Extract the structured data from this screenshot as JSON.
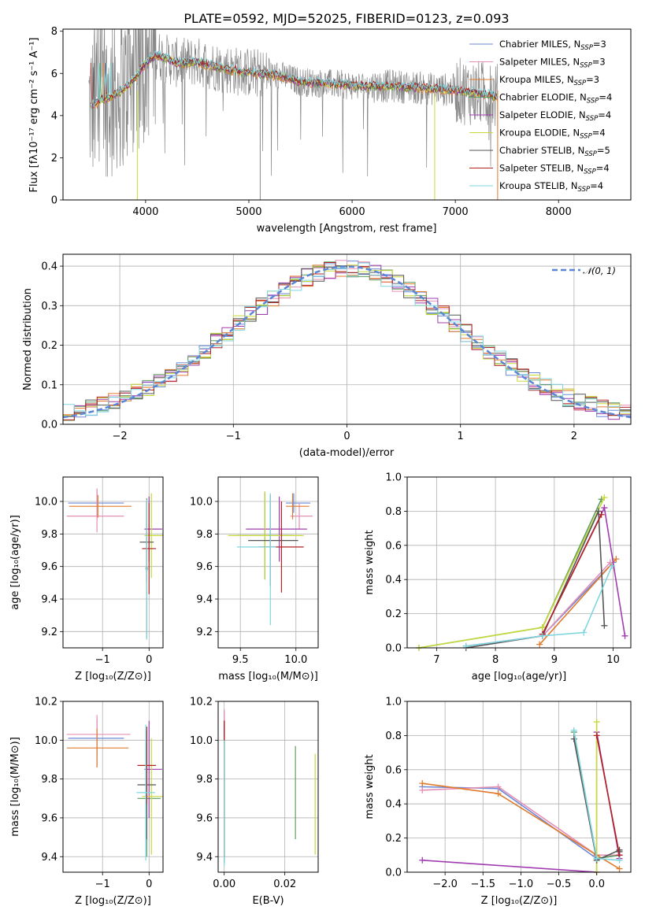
{
  "colors": {
    "chabrier_miles": "#6a8ad8",
    "salpeter_miles": "#e58fb5",
    "kroupa_miles": "#e07b2e",
    "chabrier_elodie": "#5f9e5f",
    "salpeter_elodie": "#a03cb0",
    "kroupa_elodie": "#c8d93a",
    "chabrier_stelib": "#555555",
    "salpeter_stelib": "#b22222",
    "kroupa_stelib": "#7fd6df",
    "normal": "#5b86d6"
  },
  "chart_data": [
    {
      "id": "spectrum",
      "type": "line",
      "title": "PLATE=0592, MJD=52025, FIBERID=0123, z=0.093",
      "xlabel": "wavelength [Angstrom, rest frame]",
      "ylabel": "Flux [fλ10⁻¹⁷ erg cm⁻² s⁻¹ A⁻¹]",
      "xlim": [
        3200,
        8700
      ],
      "ylim": [
        0,
        8.1
      ],
      "xticks": [
        4000,
        5000,
        6000,
        7000,
        8000
      ],
      "yticks": [
        0,
        2,
        4,
        6,
        8
      ],
      "grid": false,
      "legend_position": "top-right",
      "legend": [
        {
          "key": "chabrier_miles",
          "label": "Chabrier MILES, N",
          "sub": "SSP",
          "val": "=3"
        },
        {
          "key": "salpeter_miles",
          "label": "Salpeter MILES, N",
          "sub": "SSP",
          "val": "=3"
        },
        {
          "key": "kroupa_miles",
          "label": "Kroupa MILES, N",
          "sub": "SSP",
          "val": "=3"
        },
        {
          "key": "chabrier_elodie",
          "label": "Chabrier ELODIE, N",
          "sub": "SSP",
          "val": "=4"
        },
        {
          "key": "salpeter_elodie",
          "label": "Salpeter ELODIE, N",
          "sub": "SSP",
          "val": "=4"
        },
        {
          "key": "kroupa_elodie",
          "label": "Kroupa ELODIE, N",
          "sub": "SSP",
          "val": "=4"
        },
        {
          "key": "chabrier_stelib",
          "label": "Chabrier STELIB, N",
          "sub": "SSP",
          "val": "=5"
        },
        {
          "key": "salpeter_stelib",
          "label": "Salpeter STELIB, N",
          "sub": "SSP",
          "val": "=4"
        },
        {
          "key": "kroupa_stelib",
          "label": "Kroupa STELIB, N",
          "sub": "SSP",
          "val": "=4"
        }
      ],
      "model_curve": {
        "x": [
          3480,
          3600,
          3700,
          3800,
          3900,
          4000,
          4100,
          4200,
          4300,
          4500,
          4700,
          4900,
          5100,
          5300,
          5500,
          5800,
          6100,
          6400,
          6700,
          7000,
          7300,
          7410
        ],
        "y": [
          4.5,
          4.8,
          5.0,
          5.3,
          5.8,
          6.5,
          6.9,
          6.7,
          6.5,
          6.55,
          6.3,
          6.1,
          6.0,
          5.9,
          5.6,
          5.5,
          5.4,
          5.4,
          5.3,
          5.2,
          5.0,
          4.9
        ]
      }
    },
    {
      "id": "residuals",
      "type": "line",
      "xlabel": "(data-model)/error",
      "ylabel": "Normed distribution",
      "xlim": [
        -2.5,
        2.5
      ],
      "ylim": [
        0,
        0.43
      ],
      "xticks": [
        -2,
        -1,
        0,
        1,
        2
      ],
      "yticks": [
        0.0,
        0.1,
        0.2,
        0.3,
        0.4
      ],
      "grid": true,
      "legend_position": "top-right",
      "legend_label": "𝒩(0, 1)"
    },
    {
      "id": "age_vs_Z",
      "type": "scatter",
      "xlabel": "Z [log₁₀(Z/Z⊙)]",
      "ylabel": "age  [log₁₀(age/yr)]",
      "xlim": [
        -1.85,
        0.3
      ],
      "ylim": [
        9.1,
        10.15
      ],
      "xticks": [
        -1,
        0
      ],
      "yticks": [
        9.2,
        9.4,
        9.6,
        9.8,
        10.0
      ],
      "grid": true,
      "errorbars": [
        {
          "key": "chabrier_miles",
          "x": -1.12,
          "y": 9.99,
          "xerr": [
            0.62,
            0.58
          ],
          "yerr": [
            0.08,
            0.08
          ]
        },
        {
          "key": "salpeter_miles",
          "x": -1.12,
          "y": 9.91,
          "xerr": [
            0.65,
            0.58
          ],
          "yerr": [
            0.1,
            0.17
          ]
        },
        {
          "key": "kroupa_miles",
          "x": -1.1,
          "y": 9.97,
          "xerr": [
            0.62,
            0.72
          ],
          "yerr": [
            0.07,
            0.07
          ]
        },
        {
          "key": "chabrier_elodie",
          "x": -0.05,
          "y": 9.59,
          "xerr": [
            0.03,
            0.03
          ],
          "yerr": [
            0.43,
            0.43
          ]
        },
        {
          "key": "salpeter_elodie",
          "x": 0.0,
          "y": 9.83,
          "xerr": [
            0.1,
            0.28
          ],
          "yerr": [
            0.2,
            0.2
          ]
        },
        {
          "key": "kroupa_elodie",
          "x": 0.05,
          "y": 9.79,
          "xerr": [
            0.15,
            0.25
          ],
          "yerr": [
            0.26,
            0.26
          ]
        },
        {
          "key": "chabrier_stelib",
          "x": -0.05,
          "y": 9.75,
          "xerr": [
            0.15,
            0.15
          ],
          "yerr": [
            0.25,
            0.25
          ]
        },
        {
          "key": "salpeter_stelib",
          "x": 0.0,
          "y": 9.71,
          "xerr": [
            0.15,
            0.15
          ],
          "yerr": [
            0.28,
            0.28
          ]
        },
        {
          "key": "kroupa_stelib",
          "x": -0.05,
          "y": 9.58,
          "xerr": [
            0.03,
            0.03
          ],
          "yerr": [
            0.43,
            0.43
          ]
        }
      ]
    },
    {
      "id": "age_vs_mass",
      "type": "scatter",
      "xlabel": "mass [log₁₀(M/M⊙)]",
      "ylabel": "",
      "xlim": [
        9.3,
        10.2
      ],
      "ylim": [
        9.1,
        10.15
      ],
      "xticks": [
        9.5,
        10.0
      ],
      "yticks": [
        9.2,
        9.4,
        9.6,
        9.8,
        10.0
      ],
      "grid": true,
      "errorbars": [
        {
          "key": "chabrier_miles",
          "x": 9.98,
          "y": 9.99,
          "xerr": [
            0.07,
            0.15
          ],
          "yerr": [
            0.06,
            0.06
          ]
        },
        {
          "key": "salpeter_miles",
          "x": 10.03,
          "y": 9.91,
          "xerr": [
            0.08,
            0.12
          ],
          "yerr": [
            0.08,
            0.08
          ]
        },
        {
          "key": "kroupa_miles",
          "x": 9.97,
          "y": 9.97,
          "xerr": [
            0.06,
            0.15
          ],
          "yerr": [
            0.08,
            0.08
          ]
        },
        {
          "key": "chabrier_elodie",
          "x": 9.72,
          "y": 9.79,
          "xerr": [
            0.25,
            0.25
          ],
          "yerr": [
            0.27,
            0.27
          ]
        },
        {
          "key": "salpeter_elodie",
          "x": 9.85,
          "y": 9.83,
          "xerr": [
            0.3,
            0.25
          ],
          "yerr": [
            0.2,
            0.2
          ]
        },
        {
          "key": "kroupa_elodie",
          "x": 9.72,
          "y": 9.79,
          "xerr": [
            0.33,
            0.35
          ],
          "yerr": [
            0.27,
            0.27
          ]
        },
        {
          "key": "chabrier_stelib",
          "x": 9.77,
          "y": 9.76,
          "xerr": [
            0.2,
            0.25
          ],
          "yerr": [
            0.28,
            0.28
          ]
        },
        {
          "key": "salpeter_stelib",
          "x": 9.87,
          "y": 9.72,
          "xerr": [
            0.2,
            0.2
          ],
          "yerr": [
            0.28,
            0.28
          ]
        },
        {
          "key": "kroupa_stelib",
          "x": 9.77,
          "y": 9.72,
          "xerr": [
            0.3,
            0.05
          ],
          "yerr": [
            0.48,
            0.33
          ]
        }
      ]
    },
    {
      "id": "weight_vs_age",
      "type": "line",
      "xlabel": "age  [log₁₀(age/yr)]",
      "ylabel": "mass weight",
      "xlim": [
        6.5,
        10.3
      ],
      "ylim": [
        0,
        1.0
      ],
      "xticks": [
        7,
        8,
        9,
        10
      ],
      "yticks": [
        0.0,
        0.2,
        0.4,
        0.6,
        0.8,
        1.0
      ],
      "grid": true,
      "series": [
        {
          "key": "chabrier_miles",
          "x": [
            7.5,
            8.8,
            10.0
          ],
          "y": [
            0.01,
            0.07,
            0.5
          ]
        },
        {
          "key": "salpeter_miles",
          "x": [
            7.5,
            8.8,
            9.95
          ],
          "y": [
            0.01,
            0.07,
            0.5
          ]
        },
        {
          "key": "kroupa_miles",
          "x": [
            8.75,
            10.05
          ],
          "y": [
            0.02,
            0.52
          ]
        },
        {
          "key": "chabrier_elodie",
          "x": [
            6.7,
            8.8,
            9.8
          ],
          "y": [
            0.0,
            0.12,
            0.87
          ]
        },
        {
          "key": "salpeter_elodie",
          "x": [
            8.8,
            9.85,
            10.2
          ],
          "y": [
            0.08,
            0.82,
            0.07
          ]
        },
        {
          "key": "kroupa_elodie",
          "x": [
            6.7,
            8.8,
            9.85
          ],
          "y": [
            0.0,
            0.12,
            0.88
          ]
        },
        {
          "key": "chabrier_stelib",
          "x": [
            7.5,
            8.8,
            9.75,
            9.85
          ],
          "y": [
            0.0,
            0.07,
            0.8,
            0.13
          ]
        },
        {
          "key": "salpeter_stelib",
          "x": [
            8.8,
            9.8
          ],
          "y": [
            0.08,
            0.78
          ]
        },
        {
          "key": "kroupa_stelib",
          "x": [
            7.5,
            8.8,
            9.5,
            9.98
          ],
          "y": [
            0.01,
            0.07,
            0.09,
            0.48
          ]
        }
      ]
    },
    {
      "id": "mass_vs_Z",
      "type": "scatter",
      "xlabel": "Z [log₁₀(Z/Z⊙)]",
      "ylabel": "mass [log₁₀(M/M⊙)]",
      "xlim": [
        -1.85,
        0.3
      ],
      "ylim": [
        9.32,
        10.2
      ],
      "xticks": [
        -1,
        0
      ],
      "yticks": [
        9.4,
        9.6,
        9.8,
        10.0,
        10.2
      ],
      "grid": true,
      "errorbars": [
        {
          "key": "chabrier_miles",
          "x": -1.12,
          "y": 10.01,
          "xerr": [
            0.62,
            0.58
          ],
          "yerr": [
            0.15,
            0.1
          ]
        },
        {
          "key": "salpeter_miles",
          "x": -1.12,
          "y": 10.03,
          "xerr": [
            0.65,
            0.72
          ],
          "yerr": [
            0.1,
            0.1
          ]
        },
        {
          "key": "kroupa_miles",
          "x": -1.12,
          "y": 9.96,
          "xerr": [
            0.65,
            0.68
          ],
          "yerr": [
            0.1,
            0.1
          ]
        },
        {
          "key": "chabrier_elodie",
          "x": -0.05,
          "y": 9.7,
          "xerr": [
            0.2,
            0.3
          ],
          "yerr": [
            0.3,
            0.3
          ]
        },
        {
          "key": "salpeter_elodie",
          "x": 0.0,
          "y": 9.85,
          "xerr": [
            0.1,
            0.28
          ],
          "yerr": [
            0.25,
            0.25
          ]
        },
        {
          "key": "kroupa_elodie",
          "x": 0.05,
          "y": 9.71,
          "xerr": [
            0.2,
            0.25
          ],
          "yerr": [
            0.3,
            0.3
          ]
        },
        {
          "key": "chabrier_stelib",
          "x": -0.05,
          "y": 9.77,
          "xerr": [
            0.2,
            0.2
          ],
          "yerr": [
            0.28,
            0.28
          ]
        },
        {
          "key": "salpeter_stelib",
          "x": -0.05,
          "y": 9.87,
          "xerr": [
            0.2,
            0.2
          ],
          "yerr": [
            0.2,
            0.2
          ]
        },
        {
          "key": "kroupa_stelib",
          "x": -0.07,
          "y": 9.73,
          "xerr": [
            0.2,
            0.2
          ],
          "yerr": [
            0.35,
            0.35
          ]
        }
      ]
    },
    {
      "id": "mass_vs_ebv",
      "type": "scatter",
      "xlabel": "E(B-V)",
      "ylabel": "",
      "xlim": [
        -0.002,
        0.031
      ],
      "ylim": [
        9.32,
        10.2
      ],
      "xticks": [
        0.0,
        0.02
      ],
      "yticks": [
        9.4,
        9.6,
        9.8,
        10.0,
        10.2
      ],
      "grid": true,
      "errorbars": [
        {
          "key": "chabrier_miles",
          "x": 0.0,
          "y": 9.85,
          "xerr": [
            0,
            0
          ],
          "yerr": [
            0.45,
            0.3
          ]
        },
        {
          "key": "salpeter_miles",
          "x": 0.0,
          "y": 9.9,
          "xerr": [
            0,
            0
          ],
          "yerr": [
            0.45,
            0.26
          ]
        },
        {
          "key": "kroupa_miles",
          "x": 0.0,
          "y": 9.8,
          "xerr": [
            0,
            0
          ],
          "yerr": [
            0.4,
            0.3
          ]
        },
        {
          "key": "chabrier_elodie",
          "x": 0.0235,
          "y": 9.73,
          "xerr": [
            0,
            0
          ],
          "yerr": [
            0.24,
            0.24
          ]
        },
        {
          "key": "salpeter_elodie",
          "x": 0.0,
          "y": 9.85,
          "xerr": [
            0,
            0
          ],
          "yerr": [
            0.45,
            0.25
          ]
        },
        {
          "key": "kroupa_elodie",
          "x": 0.03,
          "y": 9.67,
          "xerr": [
            0,
            0
          ],
          "yerr": [
            0.26,
            0.26
          ]
        },
        {
          "key": "chabrier_stelib",
          "x": 0.0,
          "y": 9.85,
          "xerr": [
            0,
            0
          ],
          "yerr": [
            0.48,
            0.25
          ]
        },
        {
          "key": "salpeter_stelib",
          "x": 0.0,
          "y": 9.85,
          "xerr": [
            0,
            0
          ],
          "yerr": [
            0.45,
            0.25
          ]
        },
        {
          "key": "kroupa_stelib",
          "x": 0.0,
          "y": 9.7,
          "xerr": [
            0,
            0
          ],
          "yerr": [
            0.35,
            0.3
          ]
        }
      ]
    },
    {
      "id": "weight_vs_Z",
      "type": "line",
      "xlabel": "Z [log₁₀(Z/Z⊙)]",
      "ylabel": "mass weight",
      "xlim": [
        -2.5,
        0.45
      ],
      "ylim": [
        0,
        1.0
      ],
      "xticks": [
        -2.0,
        -1.5,
        -1.0,
        -0.5,
        0.0
      ],
      "yticks": [
        0.0,
        0.2,
        0.4,
        0.6,
        0.8,
        1.0
      ],
      "grid": true,
      "series": [
        {
          "key": "chabrier_miles",
          "x": [
            -2.3,
            -1.3,
            0.0,
            0.3
          ],
          "y": [
            0.5,
            0.49,
            0.08,
            0.1
          ]
        },
        {
          "key": "salpeter_miles",
          "x": [
            -2.3,
            -1.3,
            0.0,
            0.3
          ],
          "y": [
            0.48,
            0.5,
            0.1,
            0.1
          ]
        },
        {
          "key": "kroupa_miles",
          "x": [
            -2.3,
            -1.3,
            0.0,
            0.3
          ],
          "y": [
            0.52,
            0.46,
            0.1,
            0.02
          ]
        },
        {
          "key": "chabrier_elodie",
          "x": [
            -0.3,
            0.0,
            0.3
          ],
          "y": [
            0.82,
            0.08,
            0.1
          ]
        },
        {
          "key": "salpeter_elodie",
          "x": [
            -2.3,
            0.0,
            0.0,
            0.3
          ],
          "y": [
            0.07,
            0.0,
            0.82,
            0.08
          ]
        },
        {
          "key": "kroupa_elodie",
          "x": [
            0.0,
            0.0
          ],
          "y": [
            0.88,
            0.0
          ]
        },
        {
          "key": "chabrier_stelib",
          "x": [
            -0.3,
            0.0,
            0.3,
            0.3
          ],
          "y": [
            0.78,
            0.07,
            0.13,
            0.12
          ]
        },
        {
          "key": "salpeter_stelib",
          "x": [
            0.0,
            0.3
          ],
          "y": [
            0.8,
            0.1
          ]
        },
        {
          "key": "kroupa_stelib",
          "x": [
            -0.3,
            0.0,
            0.3
          ],
          "y": [
            0.83,
            0.08,
            0.07
          ]
        }
      ]
    }
  ]
}
